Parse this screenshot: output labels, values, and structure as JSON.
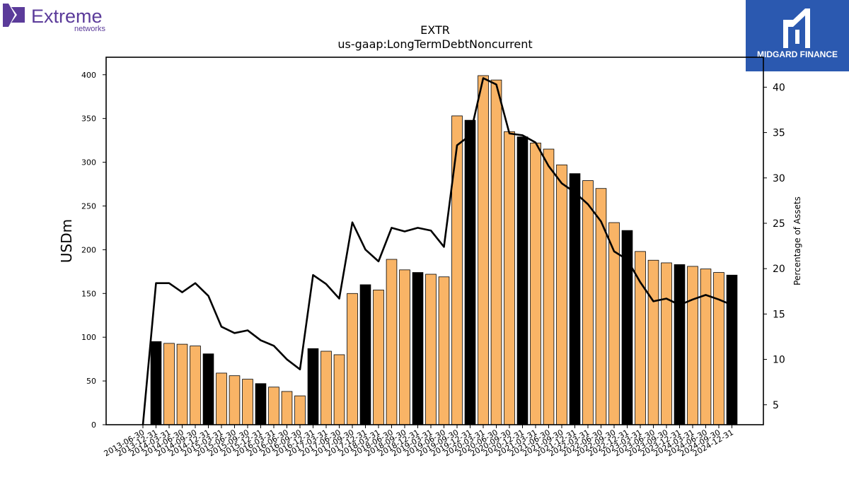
{
  "branding": {
    "left_logo_text": "Extreme",
    "left_logo_subtext": "networks",
    "left_logo_color": "#5b3b9a",
    "right_logo_text": "MIDGARD FINANCE",
    "right_logo_bg": "#2b59b0"
  },
  "chart_data": {
    "type": "bar",
    "title": "EXTR",
    "subtitle": "us-gaap:LongTermDebtNoncurrent",
    "ylabel": "USDm",
    "y2label": "Percentage of Assets",
    "ylim": [
      0,
      420
    ],
    "y2lim": [
      2.8,
      43.3
    ],
    "yticks": [
      0,
      50,
      100,
      150,
      200,
      250,
      300,
      350,
      400
    ],
    "y2ticks": [
      5,
      10,
      15,
      20,
      25,
      30,
      35,
      40
    ],
    "bar_color": "#f9b466",
    "highlight_color": "#000000",
    "line_color": "#000000",
    "categories": [
      "2013-06-30",
      "2013-12-31",
      "2014-03-31",
      "2014-06-30",
      "2014-09-30",
      "2014-12-31",
      "2015-03-31",
      "2015-06-30",
      "2015-09-30",
      "2015-12-31",
      "2016-03-31",
      "2016-06-30",
      "2016-09-30",
      "2016-12-31",
      "2017-03-31",
      "2017-06-30",
      "2017-09-30",
      "2017-12-31",
      "2018-03-31",
      "2018-06-30",
      "2018-09-30",
      "2018-12-31",
      "2019-03-31",
      "2019-06-30",
      "2019-09-30",
      "2019-12-31",
      "2020-03-31",
      "2020-06-30",
      "2020-09-30",
      "2020-12-31",
      "2021-03-31",
      "2021-06-30",
      "2021-09-30",
      "2021-12-31",
      "2022-03-31",
      "2022-06-30",
      "2022-09-30",
      "2022-12-31",
      "2023-03-31",
      "2023-06-30",
      "2023-09-30",
      "2023-12-31",
      "2024-03-31",
      "2024-06-30",
      "2024-09-30",
      "2024-12-31"
    ],
    "series": [
      {
        "type": "bar",
        "values": [
          0,
          95,
          93,
          92,
          90,
          81,
          59,
          56,
          52,
          47,
          43,
          38,
          33,
          87,
          84,
          80,
          150,
          160,
          154,
          189,
          177,
          174,
          172,
          169,
          353,
          348,
          399,
          394,
          335,
          329,
          322,
          315,
          297,
          287,
          279,
          270,
          231,
          222,
          198,
          188,
          185,
          183,
          181,
          178,
          174,
          171
        ],
        "highlight": [
          false,
          true,
          false,
          false,
          false,
          true,
          false,
          false,
          false,
          true,
          false,
          false,
          false,
          true,
          false,
          false,
          false,
          true,
          false,
          false,
          false,
          true,
          false,
          false,
          false,
          true,
          false,
          false,
          false,
          true,
          false,
          false,
          false,
          true,
          false,
          false,
          false,
          true,
          false,
          false,
          false,
          true,
          false,
          false,
          false,
          true
        ]
      },
      {
        "type": "line",
        "axis": "right",
        "values": [
          2.8,
          18.4,
          18.4,
          17.4,
          18.4,
          17.0,
          13.6,
          12.9,
          13.2,
          12.1,
          11.5,
          10.0,
          8.9,
          19.3,
          18.3,
          16.7,
          25.1,
          22.1,
          20.8,
          24.5,
          24.1,
          24.5,
          24.2,
          22.4,
          33.6,
          34.7,
          41.0,
          40.3,
          34.9,
          34.7,
          33.9,
          31.3,
          29.4,
          28.4,
          27.1,
          25.2,
          21.9,
          21.0,
          18.5,
          16.4,
          16.7,
          16.0,
          16.6,
          17.1,
          16.6,
          16.0
        ]
      }
    ]
  }
}
